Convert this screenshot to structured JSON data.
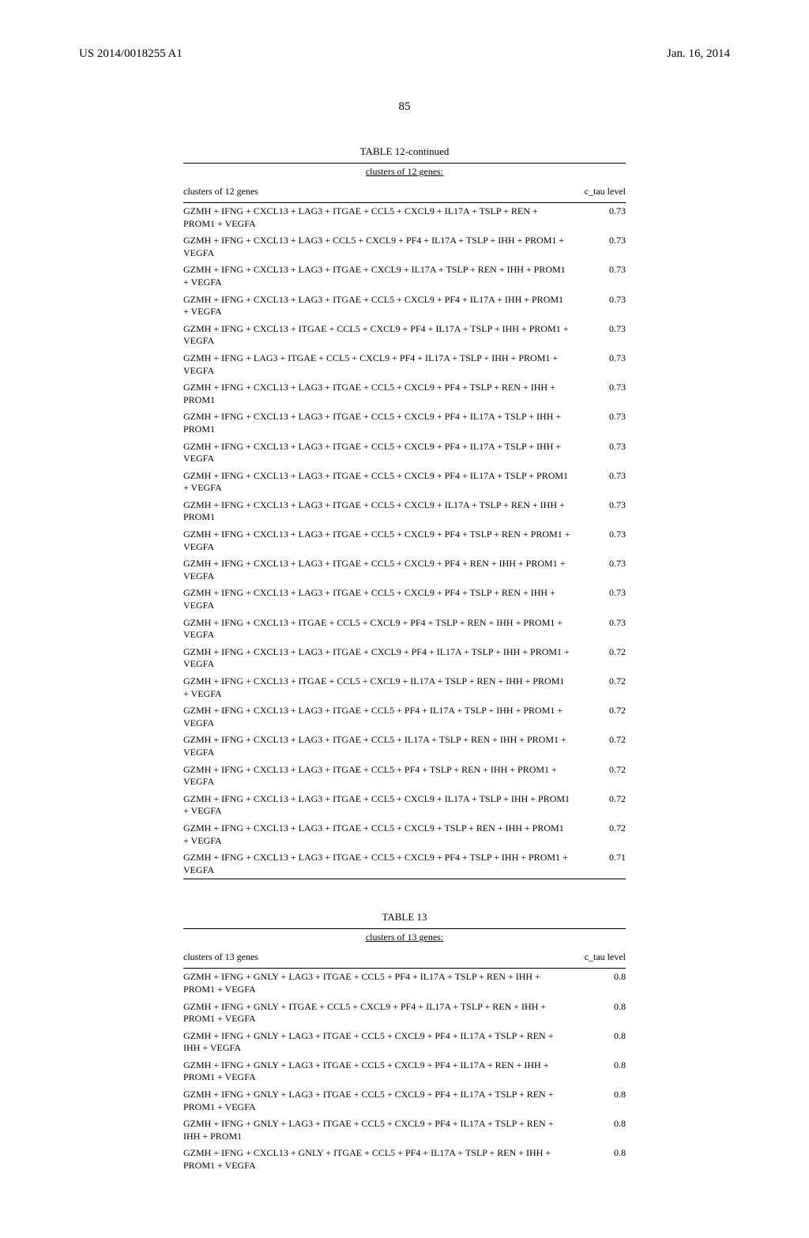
{
  "header": {
    "doc_number": "US 2014/0018255 A1",
    "date": "Jan. 16, 2014"
  },
  "page_number": "85",
  "table12": {
    "title": "TABLE 12-continued",
    "subtitle": "clusters of 12 genes:",
    "column_left": "clusters of 12 genes",
    "column_right": "c_tau level",
    "rows": [
      {
        "text": "GZMH + IFNG + CXCL13 + LAG3 + ITGAE + CCL5 + CXCL9 + IL17A + TSLP + REN + PROM1 + VEGFA",
        "val": "0.73"
      },
      {
        "text": "GZMH + IFNG + CXCL13 + LAG3 + CCL5 + CXCL9 + PF4 + IL17A + TSLP + IHH + PROM1 + VEGFA",
        "val": "0.73"
      },
      {
        "text": "GZMH + IFNG + CXCL13 + LAG3 + ITGAE + CXCL9 + IL17A + TSLP + REN + IHH + PROM1 + VEGFA",
        "val": "0.73"
      },
      {
        "text": "GZMH + IFNG + CXCL13 + LAG3 + ITGAE + CCL5 + CXCL9 + PF4 + IL17A + IHH + PROM1 + VEGFA",
        "val": "0.73"
      },
      {
        "text": "GZMH + IFNG + CXCL13 + ITGAE + CCL5 + CXCL9 + PF4 + IL17A + TSLP + IHH + PROM1 + VEGFA",
        "val": "0.73"
      },
      {
        "text": "GZMH + IFNG + LAG3 + ITGAE + CCL5 + CXCL9 + PF4 + IL17A + TSLP + IHH + PROM1 + VEGFA",
        "val": "0.73"
      },
      {
        "text": "GZMH + IFNG + CXCL13 + LAG3 + ITGAE + CCL5 + CXCL9 + PF4 + TSLP + REN + IHH + PROM1",
        "val": "0.73"
      },
      {
        "text": "GZMH + IFNG + CXCL13 + LAG3 + ITGAE + CCL5 + CXCL9 + PF4 + IL17A + TSLP + IHH + PROM1",
        "val": "0.73"
      },
      {
        "text": "GZMH + IFNG + CXCL13 + LAG3 + ITGAE + CCL5 + CXCL9 + PF4 + IL17A + TSLP + IHH + VEGFA",
        "val": "0.73"
      },
      {
        "text": "GZMH + IFNG + CXCL13 + LAG3 + ITGAE + CCL5 + CXCL9 + PF4 + IL17A + TSLP + PROM1 + VEGFA",
        "val": "0.73"
      },
      {
        "text": "GZMH + IFNG + CXCL13 + LAG3 + ITGAE + CCL5 + CXCL9 + IL17A + TSLP + REN + IHH + PROM1",
        "val": "0.73"
      },
      {
        "text": "GZMH + IFNG + CXCL13 + LAG3 + ITGAE + CCL5 + CXCL9 + PF4 + TSLP + REN + PROM1 + VEGFA",
        "val": "0.73"
      },
      {
        "text": "GZMH + IFNG + CXCL13 + LAG3 + ITGAE + CCL5 + CXCL9 + PF4 + REN + IHH + PROM1 + VEGFA",
        "val": "0.73"
      },
      {
        "text": "GZMH + IFNG + CXCL13 + LAG3 + ITGAE + CCL5 + CXCL9 + PF4 + TSLP + REN + IHH + VEGFA",
        "val": "0.73"
      },
      {
        "text": "GZMH + IFNG + CXCL13 + ITGAE + CCL5 + CXCL9 + PF4 + TSLP + REN + IHH + PROM1 + VEGFA",
        "val": "0.73"
      },
      {
        "text": "GZMH + IFNG + CXCL13 + LAG3 + ITGAE + CXCL9 + PF4 + IL17A + TSLP + IHH + PROM1 + VEGFA",
        "val": "0.72"
      },
      {
        "text": "GZMH + IFNG + CXCL13 + ITGAE + CCL5 + CXCL9 + IL17A + TSLP + REN + IHH + PROM1 + VEGFA",
        "val": "0.72"
      },
      {
        "text": "GZMH + IFNG + CXCL13 + LAG3 + ITGAE + CCL5 + PF4 + IL17A + TSLP + IHH + PROM1 + VEGFA",
        "val": "0.72"
      },
      {
        "text": "GZMH + IFNG + CXCL13 + LAG3 + ITGAE + CCL5 + IL17A + TSLP + REN + IHH + PROM1 + VEGFA",
        "val": "0.72"
      },
      {
        "text": "GZMH + IFNG + CXCL13 + LAG3 + ITGAE + CCL5 + PF4 + TSLP + REN + IHH + PROM1 + VEGFA",
        "val": "0.72"
      },
      {
        "text": "GZMH + IFNG + CXCL13 + LAG3 + ITGAE + CCL5 + CXCL9 + IL17A + TSLP + IHH + PROM1 + VEGFA",
        "val": "0.72"
      },
      {
        "text": "GZMH + IFNG + CXCL13 + LAG3 + ITGAE + CCL5 + CXCL9 + TSLP + REN + IHH + PROM1 + VEGFA",
        "val": "0.72"
      },
      {
        "text": "GZMH + IFNG + CXCL13 + LAG3 + ITGAE + CCL5 + CXCL9 + PF4 + TSLP + IHH + PROM1 + VEGFA",
        "val": "0.71"
      }
    ]
  },
  "table13": {
    "title": "TABLE 13",
    "subtitle": "clusters of 13 genes:",
    "column_left": "clusters of 13 genes",
    "column_right": "c_tau level",
    "rows": [
      {
        "text": "GZMH + IFNG + GNLY + LAG3 + ITGAE + CCL5 + PF4 + IL17A + TSLP + REN + IHH + PROM1 + VEGFA",
        "val": "0.8"
      },
      {
        "text": "GZMH + IFNG + GNLY + ITGAE + CCL5 + CXCL9 + PF4 + IL17A + TSLP + REN + IHH + PROM1 + VEGFA",
        "val": "0.8"
      },
      {
        "text": "GZMH + IFNG + GNLY + LAG3 + ITGAE + CCL5 + CXCL9 + PF4 + IL17A + TSLP + REN + IHH + VEGFA",
        "val": "0.8"
      },
      {
        "text": "GZMH + IFNG + GNLY + LAG3 + ITGAE + CCL5 + CXCL9 + PF4 + IL17A + REN + IHH + PROM1 + VEGFA",
        "val": "0.8"
      },
      {
        "text": "GZMH + IFNG + GNLY + LAG3 + ITGAE + CCL5 + CXCL9 + PF4 + IL17A + TSLP + REN + PROM1 + VEGFA",
        "val": "0.8"
      },
      {
        "text": "GZMH + IFNG + GNLY + LAG3 + ITGAE + CCL5 + CXCL9 + PF4 + IL17A + TSLP + REN + IHH + PROM1",
        "val": "0.8"
      },
      {
        "text": "GZMH + IFNG + CXCL13 + GNLY + ITGAE + CCL5 + PF4 + IL17A + TSLP + REN + IHH + PROM1 + VEGFA",
        "val": "0.8"
      }
    ]
  }
}
